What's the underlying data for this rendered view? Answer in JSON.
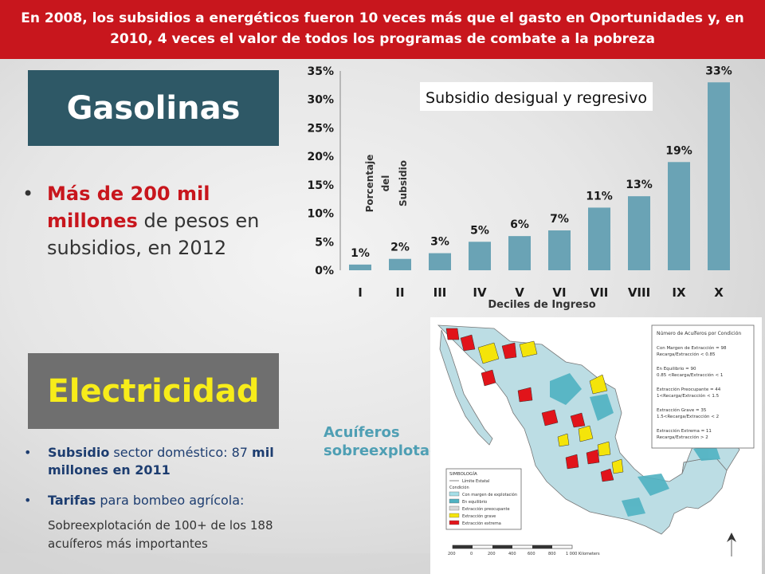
{
  "banner": {
    "text": "En 2008,  los subsidios a energéticos fueron 10 veces más que el gasto en Oportunidades y, en 2010,  4 veces el valor de todos los programas de combate a la pobreza"
  },
  "gasolinas": {
    "title": "Gasolinas",
    "bullet": {
      "red_part": "Más de 200 mil millones",
      "rest": " de pesos en subsidios, en 2012"
    }
  },
  "electricidad": {
    "title": "Electricidad",
    "bullet1": {
      "bold": "Subsidio",
      "rest": " sector doméstico: 87 ",
      "bold2": "mil millones en 2011"
    },
    "bullet2": {
      "bold": "Tarifas",
      "rest": " para bombeo agrícola:"
    },
    "note": "Sobreexplotación de 100+ de los 188 acuíferos más importantes"
  },
  "aquifers": {
    "label": "Acuíferos sobreexplotados",
    "map_legend": {
      "title": "Número de Acuíferos por Condición",
      "items": [
        "Con Margen de Extracción = 98",
        "Recarga/Extracción < 0.85",
        "En Equilibrio = 90",
        "0.85 <Recarga/Extracción < 1",
        "Extracción Preocupante = 44",
        "1<Recarga/Extracción < 1.5",
        "Extracción Grave = 35",
        "1.5<Recarga/Extracción < 2",
        "Extracción Extrema = 11",
        "Recarga/Extracción > 2"
      ],
      "simbologia_title": "SIMBOLOGÍA",
      "simbologia": [
        "Límite Estatal",
        "Condición",
        "Con margen de explotación",
        "En equilibrio",
        "Extracción preocupante",
        "Extracción grave",
        "Extracción extrema"
      ],
      "scale": [
        "200",
        "0",
        "200",
        "400",
        "600",
        "800",
        "1 000 Kilometers"
      ]
    },
    "colors": {
      "margin": "#a5dfe8",
      "equilibrium": "#4fb2c2",
      "worrying": "#d8d8d8",
      "grave": "#f4e40a",
      "extreme": "#e1141a"
    }
  },
  "chart_data": {
    "type": "bar",
    "title": "Subsidio desigual y regresivo",
    "xlabel": "Deciles de Ingreso",
    "ylabel": "Porcentaje del Subsidio",
    "categories": [
      "I",
      "II",
      "III",
      "IV",
      "V",
      "VI",
      "VII",
      "VIII",
      "IX",
      "X"
    ],
    "values": [
      1,
      2,
      3,
      5,
      6,
      7,
      11,
      13,
      19,
      33
    ],
    "data_labels": [
      "1%",
      "2%",
      "3%",
      "5%",
      "6%",
      "7%",
      "11%",
      "13%",
      "19%",
      "33%"
    ],
    "yticks": [
      "0%",
      "5%",
      "10%",
      "15%",
      "20%",
      "25%",
      "30%",
      "35%"
    ],
    "ylim": [
      0,
      35
    ],
    "bar_color": "#6aa3b5",
    "grid": false
  }
}
